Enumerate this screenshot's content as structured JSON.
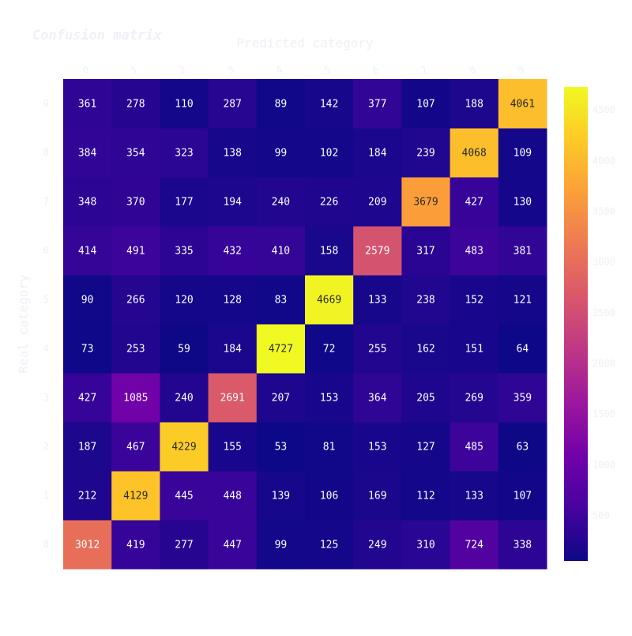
{
  "chart_data": {
    "type": "heatmap",
    "title": "Confusion matrix",
    "xlabel": "Predicted category",
    "ylabel": "Real category",
    "x_categories": [
      "0",
      "1",
      "2",
      "3",
      "4",
      "5",
      "6",
      "7",
      "8",
      "9"
    ],
    "y_categories": [
      "0",
      "1",
      "2",
      "3",
      "4",
      "5",
      "6",
      "7",
      "8",
      "9"
    ],
    "values": [
      [
        3012,
        419,
        277,
        447,
        99,
        125,
        249,
        310,
        724,
        338
      ],
      [
        212,
        4129,
        445,
        448,
        139,
        106,
        169,
        112,
        133,
        107
      ],
      [
        187,
        467,
        4229,
        155,
        53,
        81,
        153,
        127,
        485,
        63
      ],
      [
        427,
        1085,
        240,
        2691,
        207,
        153,
        364,
        205,
        269,
        359
      ],
      [
        73,
        253,
        59,
        184,
        4727,
        72,
        255,
        162,
        151,
        64
      ],
      [
        90,
        266,
        120,
        128,
        83,
        4669,
        133,
        238,
        152,
        121
      ],
      [
        414,
        491,
        335,
        432,
        410,
        158,
        2579,
        317,
        483,
        381
      ],
      [
        348,
        370,
        177,
        194,
        240,
        226,
        209,
        3679,
        427,
        130
      ],
      [
        384,
        354,
        323,
        138,
        99,
        102,
        184,
        239,
        4068,
        109
      ],
      [
        361,
        278,
        110,
        287,
        89,
        142,
        377,
        107,
        188,
        4061
      ]
    ],
    "colorscale": "plasma",
    "colorscale_stops": [
      "#0d0887",
      "#46039f",
      "#7201a8",
      "#9c179e",
      "#bd3786",
      "#d8576b",
      "#ed7953",
      "#fb9f3a",
      "#fdca26",
      "#f0f921"
    ],
    "zmin": 53,
    "zmax": 4727,
    "colorbar_ticks": [
      500,
      1000,
      1500,
      2000,
      2500,
      3000,
      3500,
      4000,
      4500
    ],
    "x_axis_side": "top",
    "y_order": "bottom-to-top",
    "grid": false,
    "legend": "colorbar-right"
  }
}
